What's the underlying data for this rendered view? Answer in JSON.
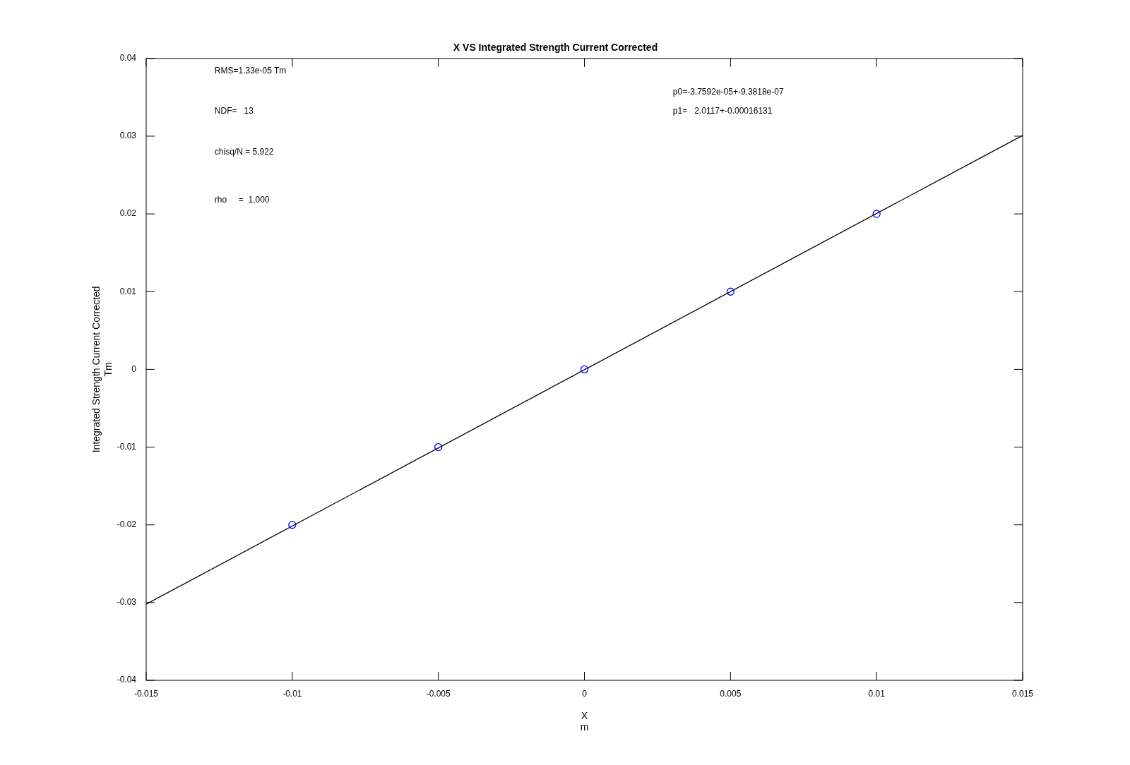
{
  "chart_data": {
    "type": "scatter",
    "title": "X VS Integrated Strength Current Corrected",
    "xlabel": "X\nm",
    "ylabel": "Integrated Strength Current Corrected\nTm",
    "series": [
      {
        "color": "#0000ff",
        "marker": "circle",
        "x": [
          -0.01,
          -0.005,
          0,
          0.005,
          0.01
        ],
        "values": [
          -0.02,
          -0.01,
          0,
          0.01,
          0.02
        ]
      },
      {
        "type": "line",
        "color": "#000000",
        "marker": "none",
        "line_style": "solid",
        "x": [
          -0.015,
          0.015
        ],
        "values": [
          -0.0302,
          0.0301
        ]
      }
    ],
    "xlim": [
      -0.015,
      0.015
    ],
    "xticks": [
      -0.015,
      -0.01,
      -0.005,
      0,
      0.005,
      0.01,
      0.015
    ],
    "ylim": [
      -0.04,
      0.04
    ],
    "yticks": [
      -0.04,
      -0.03,
      -0.02,
      -0.01,
      0,
      0.01,
      0.02,
      0.03,
      0.04
    ],
    "grid": false,
    "legend": false,
    "annotations": [
      "RMS=1.33e-05 Tm",
      "NDF=   13",
      "chisq/N = 5.922",
      "rho     =  1.000",
      "p0=-3.7592e-05+-9.3818e-07",
      "p1=   2.0117+-0.00016131"
    ]
  }
}
